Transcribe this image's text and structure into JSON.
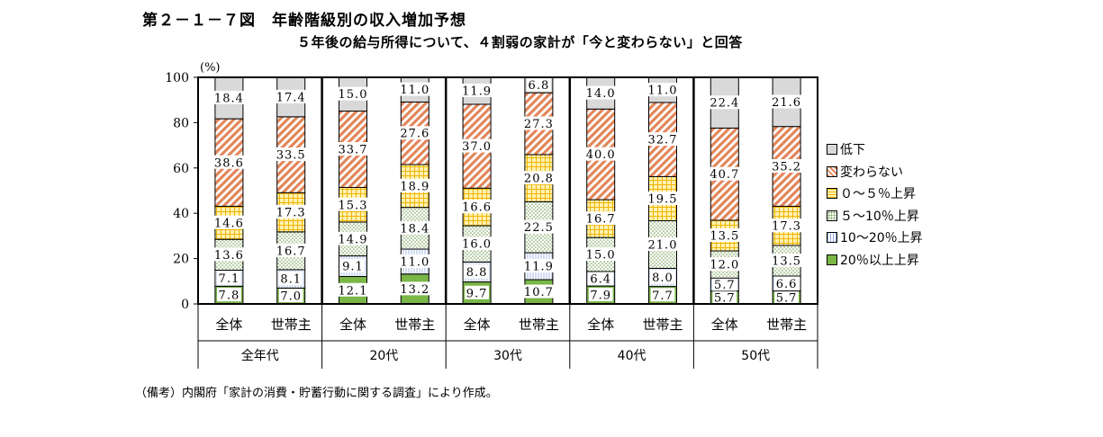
{
  "title": "第２－１－７図　年齢階級別の収入増加予想",
  "subtitle": "５年後の給与所得について、４割弱の家計が「今と変わらない」と回答",
  "note": "（備考）内閣府「家計の消費・貯蓄行動に関する調査」により作成。",
  "colors": {
    "低下": "#d9d9d9",
    "変わらない": "#e2865a",
    "０～５％上昇": "#ffd966",
    "５～10％上昇": "#c6dab2",
    "10～20％上昇": "#ffffff",
    "20％以上上昇": "#7ab648"
  },
  "chart_data": {
    "type": "bar",
    "stacked": true,
    "ylabel": "(%)",
    "ylim": [
      0,
      100
    ],
    "yticks": [
      "0",
      "20",
      "40",
      "60",
      "80",
      "100"
    ],
    "groups": [
      "全年代",
      "20代",
      "30代",
      "40代",
      "50代"
    ],
    "categories": [
      "全体",
      "世帯主",
      "全体",
      "世帯主",
      "全体",
      "世帯主",
      "全体",
      "世帯主",
      "全体",
      "世帯主"
    ],
    "legend_position": "right",
    "series": [
      {
        "name": "20％以上上昇",
        "values": [
          7.8,
          7.0,
          12.1,
          13.2,
          9.7,
          10.7,
          7.9,
          7.7,
          5.7,
          5.7
        ],
        "labels": [
          "7.8",
          "7.0",
          "12.1",
          "13.2",
          "9.7",
          "10.7",
          "7.9",
          "7.7",
          "5.7",
          "5.7"
        ]
      },
      {
        "name": "10～20％上昇",
        "values": [
          7.1,
          8.1,
          9.1,
          11.0,
          8.8,
          11.9,
          6.4,
          8.0,
          5.7,
          6.6
        ],
        "labels": [
          "7.1",
          "8.1",
          "9.1",
          "11.0",
          "8.8",
          "11.9",
          "6.4",
          "8.0",
          "5.7",
          "6.6"
        ]
      },
      {
        "name": "５～10％上昇",
        "values": [
          13.6,
          16.7,
          14.9,
          18.4,
          16.0,
          22.5,
          15.0,
          21.0,
          12.0,
          13.5
        ],
        "labels": [
          "13.6",
          "16.7",
          "14.9",
          "18.4",
          "16.0",
          "22.5",
          "15.0",
          "21.0",
          "12.0",
          "13.5"
        ]
      },
      {
        "name": "０～５％上昇",
        "values": [
          14.6,
          17.3,
          15.3,
          18.9,
          16.6,
          20.8,
          16.7,
          19.5,
          13.5,
          17.3
        ],
        "labels": [
          "14.6",
          "17.3",
          "15.3",
          "18.9",
          "16.6",
          "20.8",
          "16.7",
          "19.5",
          "13.5",
          "17.3"
        ]
      },
      {
        "name": "変わらない",
        "values": [
          38.6,
          33.5,
          33.7,
          27.6,
          37.0,
          27.3,
          40.0,
          32.7,
          40.7,
          35.2
        ],
        "labels": [
          "38.6",
          "33.5",
          "33.7",
          "27.6",
          "37.0",
          "27.3",
          "40.0",
          "32.7",
          "40.7",
          "35.2"
        ]
      },
      {
        "name": "低下",
        "values": [
          18.4,
          17.4,
          15.0,
          11.0,
          11.9,
          6.8,
          14.0,
          11.0,
          22.4,
          21.6
        ],
        "labels": [
          "18.4",
          "17.4",
          "15.0",
          "11.0",
          "11.9",
          "6.8",
          "14.0",
          "11.0",
          "22.4",
          "21.6"
        ]
      }
    ],
    "legend": [
      "低下",
      "変わらない",
      "０～５％上昇",
      "５～10％上昇",
      "10～20％上昇",
      "20％以上上昇"
    ]
  }
}
